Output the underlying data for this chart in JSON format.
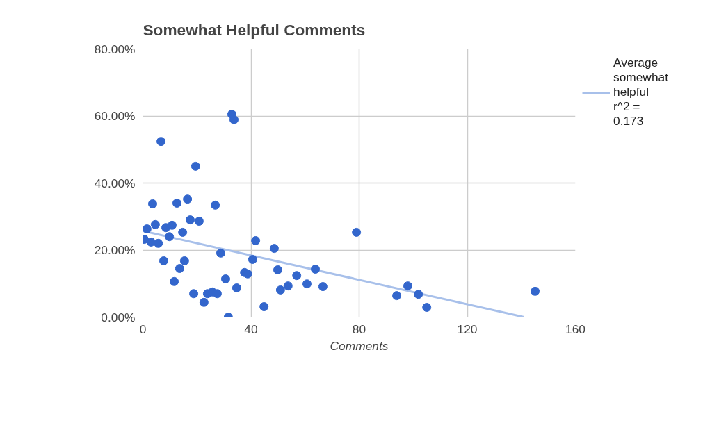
{
  "chart_data": {
    "type": "scatter",
    "title": "Somewhat Helpful Comments",
    "xlabel": "Comments",
    "xlim": [
      0,
      160
    ],
    "xticks": [
      0,
      40,
      80,
      120,
      160
    ],
    "ylim": [
      0,
      80
    ],
    "yticks": [
      {
        "value": 0,
        "label": "0.00%"
      },
      {
        "value": 20,
        "label": "20.00%"
      },
      {
        "value": 40,
        "label": "40.00%"
      },
      {
        "value": 60,
        "label": "60.00%"
      },
      {
        "value": 80,
        "label": "80.00%"
      }
    ],
    "grid": true,
    "legend": "right",
    "marker": "circle",
    "series": [
      {
        "color": "#3366cc",
        "x": [
          0.5,
          1.5,
          3,
          3.6,
          4.6,
          5.7,
          6.7,
          7.7,
          8.5,
          9.8,
          10.8,
          11.6,
          12.6,
          13.6,
          14.7,
          15.4,
          16.5,
          17.5,
          18.8,
          19.5,
          20.8,
          22.6,
          23.9,
          25.7,
          26.8,
          27.5,
          28.8,
          30.6,
          31.6,
          32.9,
          33.7,
          34.7,
          37.6,
          38.8,
          40.6,
          41.7,
          44.8,
          48.6,
          49.9,
          50.9,
          53.7,
          56.9,
          60.7,
          63.8,
          66.6,
          79.0,
          93.9,
          98.0,
          101.9,
          105.0,
          145.1
        ],
        "values": [
          23.2,
          26.3,
          22.4,
          33.8,
          27.6,
          22.0,
          52.4,
          16.8,
          26.7,
          24.0,
          27.4,
          10.6,
          34.0,
          14.5,
          25.3,
          16.8,
          35.2,
          29.0,
          7.0,
          45.0,
          28.6,
          4.4,
          7.0,
          7.5,
          33.4,
          7.0,
          19.1,
          11.4,
          0.0,
          60.5,
          58.9,
          8.7,
          13.3,
          12.9,
          17.2,
          22.8,
          3.1,
          20.5,
          14.1,
          8.1,
          9.3,
          12.4,
          9.9,
          14.3,
          9.1,
          25.3,
          6.4,
          9.3,
          6.8,
          2.9,
          7.7
        ]
      },
      {
        "type": "line",
        "marker": "none",
        "name": "Average somewhat helpful r^2 = 0.173",
        "color": "#a8c0ea",
        "x": [
          0,
          141
        ],
        "values": [
          25.7,
          0
        ]
      }
    ]
  }
}
